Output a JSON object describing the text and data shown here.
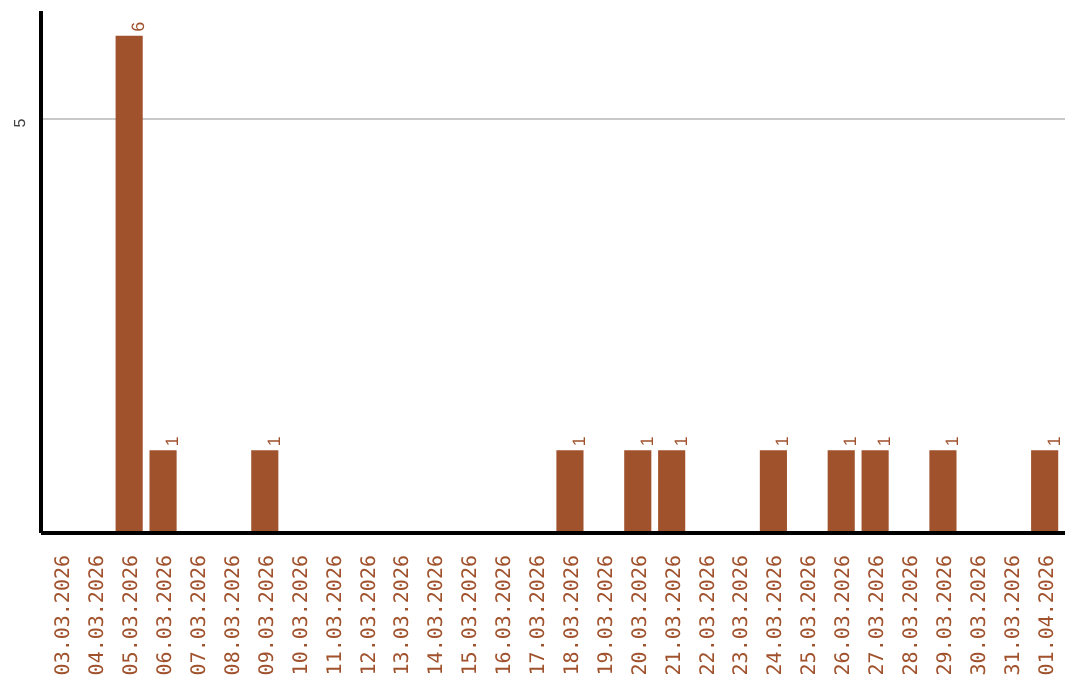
{
  "chart_data": {
    "type": "bar",
    "categories": [
      "03.03.2026",
      "04.03.2026",
      "05.03.2026",
      "06.03.2026",
      "07.03.2026",
      "08.03.2026",
      "09.03.2026",
      "10.03.2026",
      "11.03.2026",
      "12.03.2026",
      "13.03.2026",
      "14.03.2026",
      "15.03.2026",
      "16.03.2026",
      "17.03.2026",
      "18.03.2026",
      "19.03.2026",
      "20.03.2026",
      "21.03.2026",
      "22.03.2026",
      "23.03.2026",
      "24.03.2026",
      "25.03.2026",
      "26.03.2026",
      "27.03.2026",
      "28.03.2026",
      "29.03.2026",
      "30.03.2026",
      "31.03.2026",
      "01.04.2026"
    ],
    "values": [
      0,
      0,
      6,
      1,
      0,
      0,
      1,
      0,
      0,
      0,
      0,
      0,
      0,
      0,
      0,
      1,
      0,
      1,
      1,
      0,
      0,
      1,
      0,
      1,
      1,
      0,
      1,
      0,
      0,
      1
    ],
    "value_labels": [
      null,
      null,
      "6",
      "1",
      null,
      null,
      "1",
      null,
      null,
      null,
      null,
      null,
      null,
      null,
      null,
      "1",
      null,
      "1",
      "1",
      null,
      null,
      "1",
      null,
      "1",
      "1",
      null,
      "1",
      null,
      null,
      "1"
    ],
    "color": "#a0522d",
    "ylim": [
      0,
      6.3
    ],
    "yticks": [
      5
    ],
    "grid": "y"
  }
}
